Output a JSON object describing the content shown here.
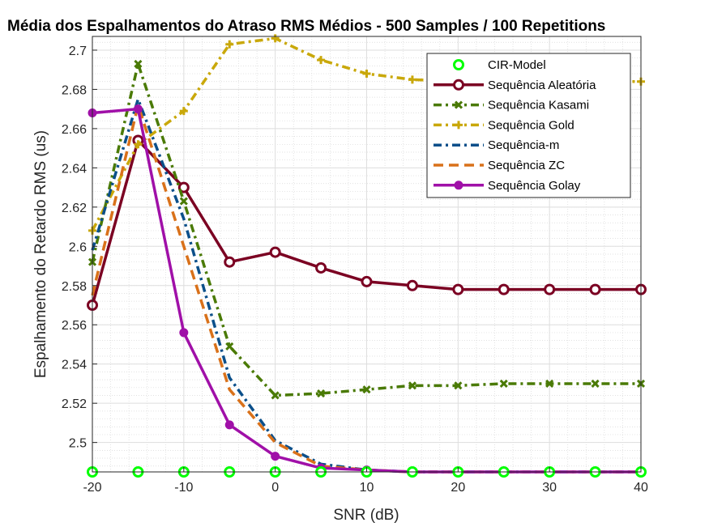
{
  "chart_data": {
    "type": "line",
    "title": "Média dos Espalhamentos do Atraso RMS Médios - 500 Samples / 100 Repetitions",
    "xlabel": "SNR (dB)",
    "ylabel": "Espalhamento do Retardo RMS (us)",
    "xlim": [
      -20,
      40
    ],
    "ylim": [
      2.485,
      2.707
    ],
    "xticks": [
      -20,
      -10,
      0,
      10,
      20,
      30,
      40
    ],
    "xtick_labels": [
      "-20",
      "-10",
      "0",
      "10",
      "20",
      "30",
      "40"
    ],
    "yticks": [
      2.5,
      2.52,
      2.54,
      2.56,
      2.58,
      2.6,
      2.62,
      2.64,
      2.66,
      2.68,
      2.7
    ],
    "ytick_labels": [
      "2.5",
      "2.52",
      "2.54",
      "2.56",
      "2.58",
      "2.6",
      "2.62",
      "2.64",
      "2.66",
      "2.68",
      "2.7"
    ],
    "grid": true,
    "minor_grid": true,
    "legend_position": "top-right",
    "x": [
      -20,
      -15,
      -10,
      -5,
      0,
      5,
      10,
      15,
      20,
      25,
      30,
      35,
      40
    ],
    "series": [
      {
        "name": "CIR-Model",
        "color": "#00ff00",
        "style": "none",
        "marker": "circle-open",
        "values": [
          2.485,
          2.485,
          2.485,
          2.485,
          2.485,
          2.485,
          2.485,
          2.485,
          2.485,
          2.485,
          2.485,
          2.485,
          2.485
        ]
      },
      {
        "name": "Sequência Aleatória",
        "color": "#7b0022",
        "style": "solid",
        "marker": "circle-open",
        "values": [
          2.57,
          2.654,
          2.63,
          2.592,
          2.597,
          2.589,
          2.582,
          2.58,
          2.578,
          2.578,
          2.578,
          2.578,
          2.578
        ]
      },
      {
        "name": "Sequência Kasami",
        "color": "#4a7a06",
        "style": "dashdot",
        "marker": "x",
        "values": [
          2.592,
          2.693,
          2.623,
          2.549,
          2.524,
          2.525,
          2.527,
          2.529,
          2.529,
          2.53,
          2.53,
          2.53,
          2.53
        ]
      },
      {
        "name": "Sequência Gold",
        "color": "#c9a80a",
        "style": "dashdot",
        "marker": "plus",
        "values": [
          2.608,
          2.652,
          2.669,
          2.703,
          2.706,
          2.695,
          2.688,
          2.685,
          2.684,
          2.684,
          2.684,
          2.684,
          2.684
        ]
      },
      {
        "name": "Sequência-m",
        "color": "#0b4f8a",
        "style": "dashdot",
        "marker": "none",
        "values": [
          2.598,
          2.675,
          2.614,
          2.533,
          2.501,
          2.489,
          2.486,
          2.485,
          2.485,
          2.485,
          2.485,
          2.485,
          2.485
        ]
      },
      {
        "name": "Sequência ZC",
        "color": "#d9711a",
        "style": "dashed",
        "marker": "none",
        "values": [
          2.575,
          2.672,
          2.6,
          2.527,
          2.5,
          2.488,
          2.486,
          2.485,
          2.485,
          2.485,
          2.485,
          2.485,
          2.485
        ]
      },
      {
        "name": "Sequência Golay",
        "color": "#a010a8",
        "style": "solid",
        "marker": "circle-filled",
        "values": [
          2.668,
          2.67,
          2.556,
          2.509,
          2.493,
          2.487,
          2.486,
          2.485,
          2.485,
          2.485,
          2.485,
          2.485,
          2.485
        ]
      }
    ]
  }
}
